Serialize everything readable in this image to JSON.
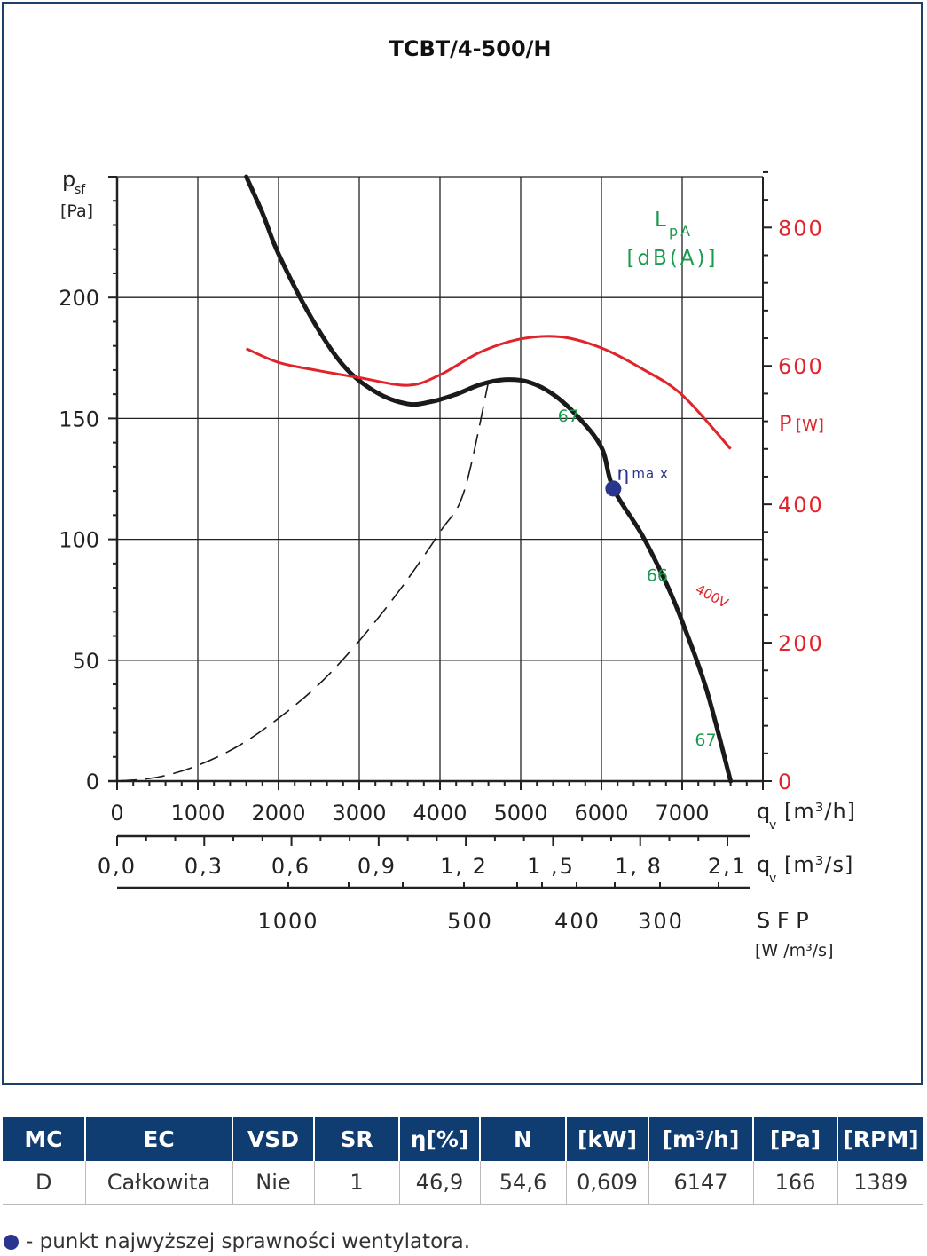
{
  "chart_data": {
    "type": "line",
    "title": "TCBT/4-500/H",
    "y_axis": {
      "label": "p",
      "label_sub": "sf",
      "unit": "[Pa]",
      "range": [
        0,
        250
      ],
      "tick_labels": [
        "0",
        "50",
        "100",
        "150",
        "200"
      ]
    },
    "x_axis_primary": {
      "label": "q",
      "label_sub": "v",
      "unit": "[m³/h]",
      "range": [
        0,
        8000
      ],
      "tick_labels": [
        "0",
        "1000",
        "2000",
        "3000",
        "4000",
        "5000",
        "6000",
        "7000"
      ]
    },
    "x_axis_secondary": {
      "label": "q",
      "label_sub": "v",
      "unit": "[m³/s]",
      "tick_labels": [
        "0,0",
        "0,3",
        "0,6",
        "0,9",
        "1, 2",
        "1 ,5",
        "1, 8",
        "2,1"
      ]
    },
    "sfp_axis": {
      "label": "S F P",
      "unit": "[W /m³/s]",
      "tick_labels": [
        "1000",
        "500",
        "400",
        "300"
      ]
    },
    "power_axis": {
      "label": "P",
      "unit": "[W]",
      "range": [
        0,
        900
      ],
      "tick_labels": [
        "0",
        "200",
        "400",
        "600",
        "800"
      ]
    },
    "lpa_label": {
      "line1": "L",
      "sub": "pA",
      "line2": "[dB(A)]"
    },
    "series": [
      {
        "id": "pressure_curve",
        "points": [
          [
            1600,
            250
          ],
          [
            1800,
            235
          ],
          [
            2000,
            218
          ],
          [
            2400,
            192
          ],
          [
            2800,
            172
          ],
          [
            3200,
            161
          ],
          [
            3600,
            156
          ],
          [
            3900,
            157
          ],
          [
            4200,
            160
          ],
          [
            4500,
            164
          ],
          [
            4800,
            166
          ],
          [
            5100,
            165
          ],
          [
            5400,
            160
          ],
          [
            5700,
            151
          ],
          [
            6000,
            138
          ],
          [
            6147,
            121
          ],
          [
            6500,
            102
          ],
          [
            6800,
            82
          ],
          [
            7000,
            66
          ],
          [
            7300,
            38
          ],
          [
            7600,
            0
          ]
        ]
      },
      {
        "id": "system_curve",
        "points": [
          [
            0,
            0
          ],
          [
            500,
            1.6
          ],
          [
            1000,
            6.5
          ],
          [
            1500,
            14.5
          ],
          [
            2000,
            26
          ],
          [
            2500,
            40
          ],
          [
            3000,
            58
          ],
          [
            3500,
            79
          ],
          [
            4000,
            103
          ],
          [
            4300,
            120
          ],
          [
            4600,
            165
          ]
        ]
      },
      {
        "id": "power_400V",
        "name": "400V",
        "points": [
          [
            1600,
            625
          ],
          [
            2000,
            605
          ],
          [
            2500,
            593
          ],
          [
            3000,
            583
          ],
          [
            3600,
            572
          ],
          [
            4000,
            587
          ],
          [
            4500,
            620
          ],
          [
            5000,
            639
          ],
          [
            5500,
            642
          ],
          [
            6000,
            626
          ],
          [
            6500,
            596
          ],
          [
            7000,
            558
          ],
          [
            7600,
            480
          ]
        ]
      }
    ],
    "lpa_markers": [
      {
        "x": 5700,
        "y": 152,
        "text": "67"
      },
      {
        "x": 6800,
        "y": 86,
        "text": "66"
      },
      {
        "x": 7400,
        "y": 18,
        "text": "67"
      }
    ],
    "eta_max": {
      "x": 6147,
      "y": 121,
      "label": "η",
      "label_sup": "ma x"
    },
    "grid": true
  },
  "table": {
    "headers": [
      "MC",
      "EC",
      "VSD",
      "SR",
      "η[%]",
      "N",
      "[kW]",
      "[m³/h]",
      "[Pa]",
      "[RPM]"
    ],
    "row": [
      "D",
      "Całkowita",
      "Nie",
      "1",
      "46,9",
      "54,6",
      "0,609",
      "6147",
      "166",
      "1389"
    ]
  },
  "footnote": "- punkt najwyższej sprawności wentylatora.",
  "colors": {
    "frame": "#1e3f66",
    "header_bg": "#0f3d71",
    "power": "#e0242c",
    "lpa": "#1a9a4e",
    "eta_dot": "#2a3590",
    "curve": "#1a1a1a"
  }
}
